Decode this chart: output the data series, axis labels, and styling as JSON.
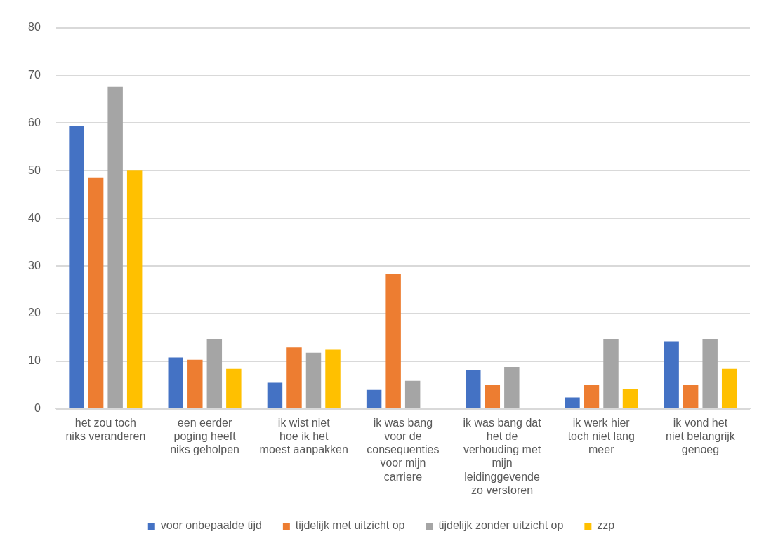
{
  "chart_data": {
    "type": "bar",
    "categories": [
      "het zou toch niks veranderen",
      "een eerder poging heeft niks geholpen",
      "ik wist niet hoe ik het moest aanpakken",
      "ik was bang voor de consequenties voor mijn carriere",
      "ik was bang dat het de verhouding met mijn leidinggevende zo verstoren",
      "ik werk hier toch niet lang meer",
      "ik vond het niet belangrijk genoeg"
    ],
    "series": [
      {
        "name": "voor onbepaalde tijd",
        "color": "#4472c4",
        "values": [
          59.4,
          10.8,
          5.5,
          4.0,
          8.1,
          2.4,
          14.2
        ]
      },
      {
        "name": "tijdelijk met uitzicht op",
        "color": "#ed7d31",
        "values": [
          48.6,
          10.3,
          12.9,
          28.3,
          5.1,
          5.1,
          5.1
        ]
      },
      {
        "name": "tijdelijk zonder uitzicht op",
        "color": "#a5a5a5",
        "values": [
          67.6,
          14.7,
          11.8,
          5.9,
          8.8,
          14.7,
          14.7
        ]
      },
      {
        "name": "zzp",
        "color": "#ffc000",
        "values": [
          50.0,
          8.4,
          12.4,
          0,
          0,
          4.2,
          8.4
        ]
      }
    ],
    "ylim": [
      0,
      80
    ],
    "yticks": [
      0,
      10,
      20,
      30,
      40,
      50,
      60,
      70,
      80
    ],
    "grid": "y",
    "legend": "bottom"
  }
}
